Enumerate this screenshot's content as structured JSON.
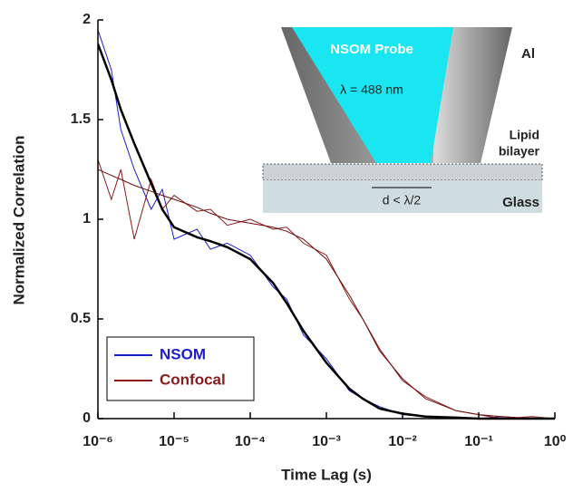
{
  "chart_data": {
    "type": "line",
    "xlabel": "Time Lag (s)",
    "ylabel": "Normalized Correlation",
    "log_x": true,
    "xlim": [
      1e-06,
      1
    ],
    "xticks": [
      {
        "value": 1e-06,
        "label": "10⁻⁶"
      },
      {
        "value": 1e-05,
        "label": "10⁻⁵"
      },
      {
        "value": 0.0001,
        "label": "10⁻⁴"
      },
      {
        "value": 0.001,
        "label": "10⁻³"
      },
      {
        "value": 0.01,
        "label": "10⁻²"
      },
      {
        "value": 0.1,
        "label": "10⁻¹"
      },
      {
        "value": 1,
        "label": "10⁰"
      }
    ],
    "ylim": [
      0,
      2
    ],
    "yticks": [
      0,
      0.5,
      1,
      1.5,
      2
    ],
    "legend": "lower left",
    "x": [
      1e-06,
      1.5e-06,
      2e-06,
      3e-06,
      5e-06,
      7e-06,
      1e-05,
      2e-05,
      3e-05,
      5e-05,
      0.0001,
      0.0002,
      0.0003,
      0.0005,
      0.001,
      0.002,
      0.003,
      0.005,
      0.01,
      0.02,
      0.05,
      0.1,
      0.2,
      0.5,
      1
    ],
    "series": [
      {
        "name": "NSOM",
        "color": "#1c1ccf",
        "width": 1,
        "values": [
          1.95,
          1.75,
          1.45,
          1.25,
          1.05,
          1.15,
          0.9,
          0.95,
          0.85,
          0.88,
          0.82,
          0.66,
          0.6,
          0.42,
          0.3,
          0.14,
          0.1,
          0.06,
          0.02,
          0.01,
          0,
          0,
          0.01,
          0,
          0
        ]
      },
      {
        "name": "Confocal",
        "color": "#8b1a1a",
        "width": 1,
        "values": [
          1.3,
          1.1,
          1.25,
          0.9,
          1.2,
          1.05,
          1.12,
          1.04,
          1.05,
          0.97,
          1,
          0.95,
          0.96,
          0.88,
          0.82,
          0.6,
          0.5,
          0.35,
          0.19,
          0.11,
          0.04,
          0.02,
          0,
          0.01,
          0
        ]
      },
      {
        "color": "#000000",
        "width": 2.5,
        "values": [
          1.88,
          1.7,
          1.55,
          1.38,
          1.18,
          1.05,
          0.96,
          0.91,
          0.89,
          0.86,
          0.8,
          0.68,
          0.58,
          0.44,
          0.28,
          0.15,
          0.1,
          0.05,
          0.025,
          0.01,
          0.005,
          0,
          0,
          0,
          0
        ]
      },
      {
        "color": "#6e0c0c",
        "width": 1,
        "values": [
          1.25,
          1.22,
          1.2,
          1.17,
          1.14,
          1.12,
          1.1,
          1.06,
          1.03,
          1,
          0.98,
          0.96,
          0.94,
          0.9,
          0.8,
          0.62,
          0.5,
          0.34,
          0.2,
          0.1,
          0.04,
          0.02,
          0.01,
          0,
          0
        ]
      }
    ],
    "inset_labels": {
      "probe": "NSOM Probe",
      "wavelength": "λ = 488 nm",
      "metal": "Al",
      "bilayer": [
        "Lipid",
        "bilayer"
      ],
      "aperture": "d < λ/2",
      "substrate": "Glass"
    }
  }
}
